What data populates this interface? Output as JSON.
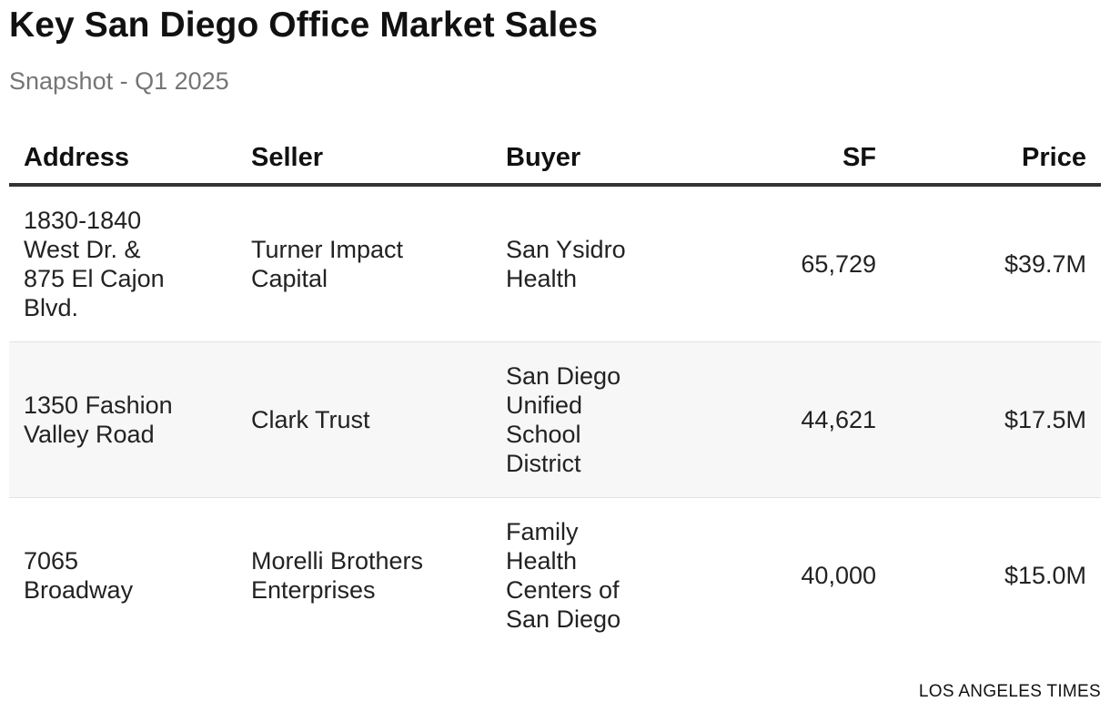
{
  "header": {
    "title": "Key San Diego Office Market Sales",
    "subtitle": "Snapshot - Q1 2025"
  },
  "chart_data": {
    "type": "table",
    "title": "Key San Diego Office Market Sales",
    "subtitle": "Snapshot - Q1 2025",
    "columns": [
      "Address",
      "Seller",
      "Buyer",
      "SF",
      "Price"
    ],
    "rows": [
      {
        "address": "1830-1840 West Dr. & 875 El Cajon Blvd.",
        "seller": "Turner Impact Capital",
        "buyer": "San Ysidro Health",
        "sf": "65,729",
        "price": "$39.7M"
      },
      {
        "address": "1350 Fashion Valley Road",
        "seller": "Clark Trust",
        "buyer": "San Diego Unified School District",
        "sf": "44,621",
        "price": "$17.5M"
      },
      {
        "address": "7065 Broadway",
        "seller": "Morelli Brothers Enterprises",
        "buyer": "Family Health Centers of San Diego",
        "sf": "40,000",
        "price": "$15.0M"
      }
    ],
    "source": "LOS ANGELES TIMES"
  }
}
